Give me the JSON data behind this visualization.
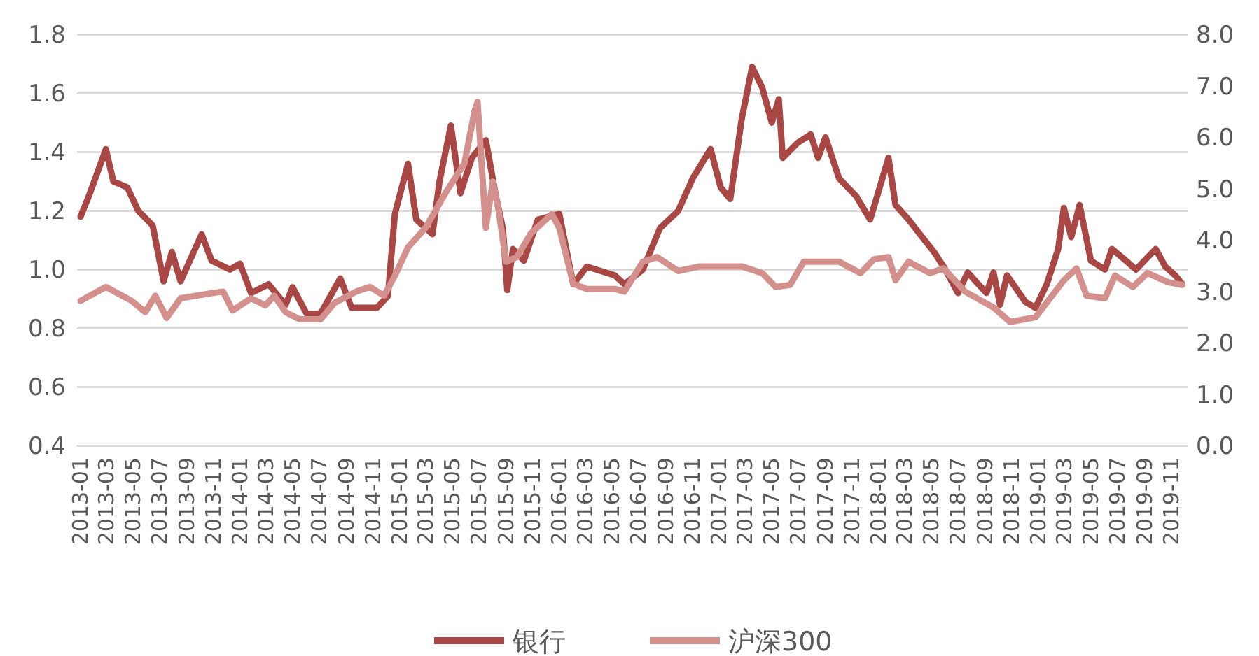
{
  "chart_data": {
    "type": "line",
    "grid": "y",
    "legend": "bottom",
    "xlim": [
      "2012-12-24",
      "2019-12-08"
    ],
    "xticks": [
      "2013-01",
      "2013-03",
      "2013-05",
      "2013-07",
      "2013-09",
      "2013-11",
      "2014-01",
      "2014-03",
      "2014-05",
      "2014-07",
      "2014-09",
      "2014-11",
      "2015-01",
      "2015-03",
      "2015-05",
      "2015-07",
      "2015-09",
      "2015-11",
      "2016-01",
      "2016-03",
      "2016-05",
      "2016-07",
      "2016-09",
      "2016-11",
      "2017-01",
      "2017-03",
      "2017-05",
      "2017-07",
      "2017-09",
      "2017-11",
      "2018-01",
      "2018-03",
      "2018-05",
      "2018-07",
      "2018-09",
      "2018-11",
      "2019-01",
      "2019-03",
      "2019-05",
      "2019-07",
      "2019-09",
      "2019-11"
    ],
    "ylim": [
      0.4,
      1.8
    ],
    "yticks": [
      0.4,
      0.6,
      0.8,
      {
        "value": 1,
        "label": "1.0"
      },
      1.2,
      1.4,
      1.6,
      1.8
    ],
    "y2lim": [
      0,
      8
    ],
    "y2ticks": [
      {
        "value": 0,
        "label": "0.0"
      },
      {
        "value": 1,
        "label": "1.0"
      },
      {
        "value": 2,
        "label": "2.0"
      },
      {
        "value": 3,
        "label": "3.0"
      },
      {
        "value": 4,
        "label": "4.0"
      },
      {
        "value": 5,
        "label": "5.0"
      },
      {
        "value": 6,
        "label": "6.0"
      },
      {
        "value": 7,
        "label": "7.0"
      },
      {
        "value": 8,
        "label": "8.0"
      }
    ],
    "series": [
      {
        "name": "银行",
        "color": "#a84743",
        "x": [
          "2013-01-01",
          "2013-01-20",
          "2013-02-28",
          "2013-03-17",
          "2013-04-18",
          "2013-05-13",
          "2013-06-15",
          "2013-07-10",
          "2013-07-29",
          "2013-08-18",
          "2013-10-05",
          "2013-10-28",
          "2013-12-09",
          "2014-01-01",
          "2014-01-26",
          "2014-03-07",
          "2014-04-15",
          "2014-05-01",
          "2014-06-02",
          "2014-07-04",
          "2014-08-18",
          "2014-09-13",
          "2014-11-10",
          "2014-12-05",
          "2014-12-21",
          "2015-01-20",
          "2015-02-08",
          "2015-03-17",
          "2015-04-02",
          "2015-04-28",
          "2015-05-20",
          "2015-06-15",
          "2015-07-17",
          "2015-08-09",
          "2015-08-25",
          "2015-09-04",
          "2015-09-17",
          "2015-10-12",
          "2015-11-13",
          "2016-01-01",
          "2016-02-02",
          "2016-03-04",
          "2016-05-07",
          "2016-05-29",
          "2016-07-10",
          "2016-08-18",
          "2016-09-29",
          "2016-11-01",
          "2016-12-12",
          "2017-01-04",
          "2017-01-26",
          "2017-02-21",
          "2017-03-17",
          "2017-04-09",
          "2017-05-01",
          "2017-05-17",
          "2017-05-26",
          "2017-06-28",
          "2017-07-29",
          "2017-08-15",
          "2017-09-01",
          "2017-10-02",
          "2017-11-10",
          "2017-12-12",
          "2018-01-23",
          "2018-02-08",
          "2018-03-10",
          "2018-04-05",
          "2018-05-07",
          "2018-05-29",
          "2018-07-01",
          "2018-07-23",
          "2018-09-04",
          "2018-09-20",
          "2018-10-05",
          "2018-10-21",
          "2018-12-02",
          "2018-12-25",
          "2019-01-20",
          "2019-02-15",
          "2019-02-28",
          "2019-03-17",
          "2019-04-05",
          "2019-05-01",
          "2019-06-02",
          "2019-06-18",
          "2019-07-20",
          "2019-08-12",
          "2019-09-26",
          "2019-10-18",
          "2019-11-10",
          "2019-11-26"
        ],
        "values": [
          1.18,
          1.25,
          1.41,
          1.3,
          1.28,
          1.2,
          1.15,
          0.96,
          1.06,
          0.96,
          1.12,
          1.03,
          1.0,
          1.02,
          0.92,
          0.95,
          0.88,
          0.94,
          0.85,
          0.85,
          0.97,
          0.87,
          0.87,
          0.91,
          1.19,
          1.36,
          1.17,
          1.12,
          1.3,
          1.49,
          1.26,
          1.38,
          1.44,
          1.25,
          1.14,
          0.93,
          1.07,
          1.03,
          1.17,
          1.19,
          0.95,
          1.01,
          0.98,
          0.95,
          1.0,
          1.14,
          1.2,
          1.31,
          1.41,
          1.28,
          1.24,
          1.51,
          1.69,
          1.62,
          1.5,
          1.58,
          1.38,
          1.43,
          1.46,
          1.38,
          1.45,
          1.31,
          1.25,
          1.17,
          1.38,
          1.22,
          1.17,
          1.12,
          1.06,
          1.01,
          0.92,
          0.99,
          0.92,
          0.99,
          0.88,
          0.98,
          0.89,
          0.87,
          0.95,
          1.07,
          1.21,
          1.11,
          1.22,
          1.03,
          1.0,
          1.07,
          1.03,
          1.0,
          1.07,
          1.01,
          0.98,
          0.95
        ]
      },
      {
        "name": "沪深300",
        "color": "#d4908d",
        "axis": "y2",
        "x": [
          "2013-01-01",
          "2013-02-28",
          "2013-04-28",
          "2013-05-29",
          "2013-06-21",
          "2013-07-17",
          "2013-08-18",
          "2013-10-21",
          "2013-11-23",
          "2013-12-15",
          "2014-01-26",
          "2014-02-28",
          "2014-03-20",
          "2014-04-15",
          "2014-05-17",
          "2014-07-04",
          "2014-08-05",
          "2014-09-23",
          "2014-10-25",
          "2014-11-26",
          "2014-12-21",
          "2015-01-20",
          "2015-03-01",
          "2015-04-18",
          "2015-05-29",
          "2015-06-21",
          "2015-06-28",
          "2015-07-17",
          "2015-08-02",
          "2015-08-15",
          "2015-09-01",
          "2015-09-26",
          "2015-10-28",
          "2015-12-15",
          "2016-01-01",
          "2016-02-02",
          "2016-03-04",
          "2016-05-07",
          "2016-05-29",
          "2016-07-10",
          "2016-08-12",
          "2016-09-29",
          "2016-11-17",
          "2017-02-21",
          "2017-04-09",
          "2017-05-10",
          "2017-06-12",
          "2017-07-13",
          "2017-10-02",
          "2017-11-20",
          "2017-12-21",
          "2018-01-23",
          "2018-02-08",
          "2018-03-10",
          "2018-04-28",
          "2018-05-29",
          "2018-07-17",
          "2018-09-20",
          "2018-10-28",
          "2018-12-25",
          "2019-02-28",
          "2019-03-29",
          "2019-04-21",
          "2019-06-02",
          "2019-06-25",
          "2019-08-05",
          "2019-09-07",
          "2019-10-25",
          "2019-11-26"
        ],
        "values": [
          2.82,
          3.09,
          2.82,
          2.6,
          2.92,
          2.49,
          2.87,
          2.96,
          3.0,
          2.63,
          2.87,
          2.73,
          2.92,
          2.6,
          2.46,
          2.46,
          2.78,
          3.0,
          3.09,
          2.92,
          3.31,
          3.86,
          4.24,
          4.95,
          5.49,
          6.5,
          6.69,
          4.24,
          5.14,
          4.6,
          3.58,
          3.67,
          4.13,
          4.51,
          4.24,
          3.15,
          3.05,
          3.05,
          3.0,
          3.58,
          3.67,
          3.4,
          3.49,
          3.49,
          3.36,
          3.09,
          3.13,
          3.58,
          3.58,
          3.36,
          3.63,
          3.67,
          3.22,
          3.58,
          3.36,
          3.45,
          3.0,
          2.69,
          2.41,
          2.5,
          3.22,
          3.45,
          2.92,
          2.87,
          3.31,
          3.09,
          3.36,
          3.18,
          3.13
        ]
      }
    ]
  }
}
